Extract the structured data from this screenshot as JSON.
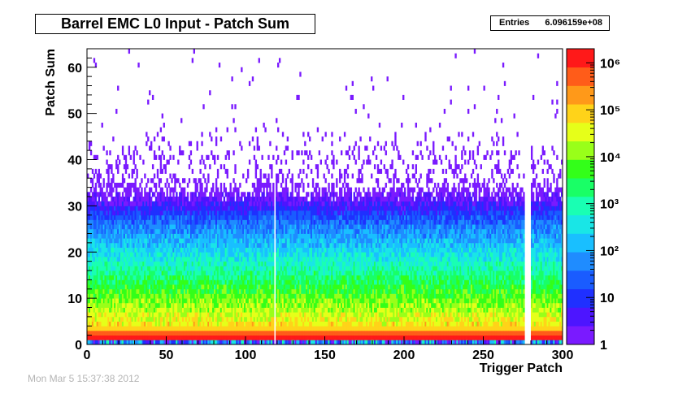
{
  "chart_data": {
    "type": "heatmap",
    "title": "Barrel EMC L0 Input - Patch Sum",
    "xlabel": "Trigger Patch",
    "ylabel": "Patch Sum",
    "xlim": [
      0,
      300
    ],
    "ylim": [
      0,
      64
    ],
    "x_ticks": [
      0,
      50,
      100,
      150,
      200,
      250,
      300
    ],
    "y_ticks": [
      0,
      10,
      20,
      30,
      40,
      50,
      60
    ],
    "z_scale": "log",
    "z_range": [
      1,
      2000000
    ],
    "z_ticks": [
      {
        "label": "1",
        "value": 1
      },
      {
        "label": "10",
        "value": 10
      },
      {
        "label": "10²",
        "value": 100
      },
      {
        "label": "10³",
        "value": 1000
      },
      {
        "label": "10⁴",
        "value": 10000
      },
      {
        "label": "10⁵",
        "value": 100000
      },
      {
        "label": "10⁶",
        "value": 1000000
      }
    ],
    "palette": [
      "#7a1aff",
      "#4d15ff",
      "#1f30ff",
      "#1a5cff",
      "#1f8cff",
      "#19bfff",
      "#19e6e6",
      "#19ffb3",
      "#19ff66",
      "#33ff19",
      "#99ff19",
      "#e6ff19",
      "#ffd319",
      "#ff9919",
      "#ff5c19",
      "#ff1919"
    ],
    "entries_label": "Entries",
    "entries_value": "6.096159e+08",
    "dead_patches": [
      118,
      276,
      277,
      278,
      279
    ]
  },
  "footer_text": "Mon Mar  5 15:37:38 2012"
}
